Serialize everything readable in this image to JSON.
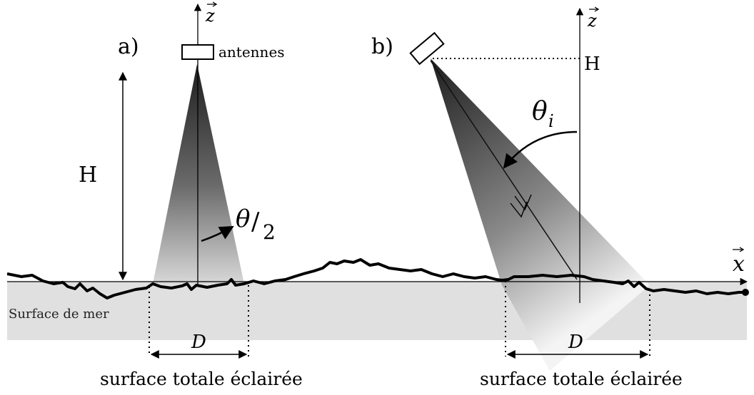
{
  "panel_a": {
    "label": "a)",
    "axis_z": "z",
    "antenna_label": "antennes",
    "height_label": "H",
    "angle_label_num": "θ",
    "angle_label_den": "2",
    "width_label": "D",
    "caption": "surface totale éclairée"
  },
  "panel_b": {
    "label": "b)",
    "axis_z": "z",
    "height_label": "H",
    "angle_label": "θ",
    "angle_subscript": "i",
    "width_label": "D",
    "caption": "surface totale éclairée"
  },
  "axis_x": "x",
  "sea_label": "Surface de mer",
  "colors": {
    "sea_fill": "#e0e0e0",
    "beam_dark": "#2a2a2a",
    "line": "#000000"
  }
}
